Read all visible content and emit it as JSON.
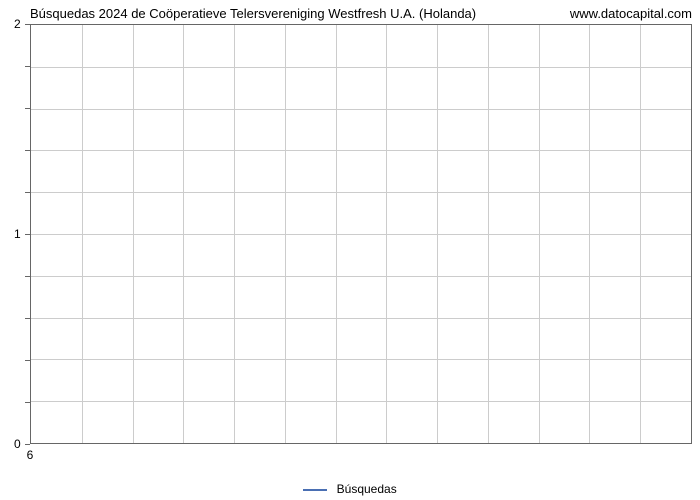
{
  "chart": {
    "type": "line",
    "title": "Búsquedas 2024 de Coöperatieve Telersvereniging Westfresh U.A. (Holanda)",
    "watermark": "www.datocapital.com",
    "title_fontsize": 13,
    "title_color": "#000000",
    "background_color": "#ffffff",
    "plot_border_color": "#666666",
    "grid_color": "#cccccc",
    "x": {
      "ticks": [
        6
      ],
      "lim": [
        6,
        6
      ],
      "grid_count": 13
    },
    "y": {
      "ticks": [
        0,
        1,
        2
      ],
      "lim": [
        0,
        2
      ],
      "minor_tick_count": 10
    },
    "series": [
      {
        "name": "Búsquedas",
        "color": "#4a6fb3",
        "line_width": 2,
        "data": []
      }
    ],
    "legend": {
      "label": "Búsquedas",
      "position": "bottom-center",
      "fontsize": 12
    },
    "tick_fontsize": 12
  }
}
